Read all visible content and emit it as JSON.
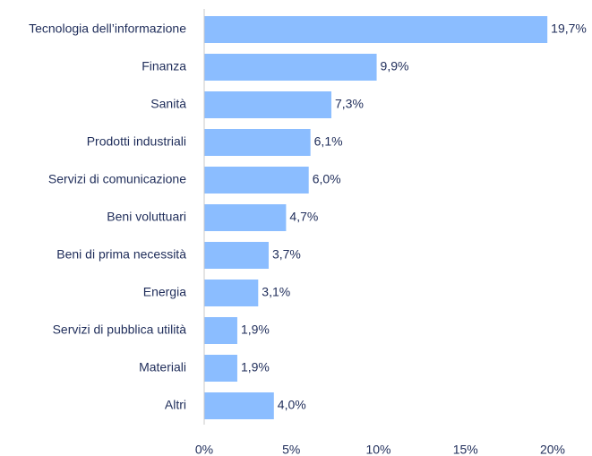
{
  "chart_data": {
    "type": "bar",
    "orientation": "horizontal",
    "categories": [
      "Tecnologia dell’informazione",
      "Finanza",
      "Sanità",
      "Prodotti industriali",
      "Servizi di comunicazione",
      "Beni voluttuari",
      "Beni di prima necessità",
      "Energia",
      "Servizi di pubblica utilità",
      "Materiali",
      "Altri"
    ],
    "values": [
      19.7,
      9.9,
      7.3,
      6.1,
      6.0,
      4.7,
      3.7,
      3.1,
      1.9,
      1.9,
      4.0
    ],
    "value_labels": [
      "19,7%",
      "9,9%",
      "7,3%",
      "6,1%",
      "6,0%",
      "4,7%",
      "3,7%",
      "3,1%",
      "1,9%",
      "1,9%",
      "4,0%"
    ],
    "color": "#8bbdff",
    "xlim": [
      0,
      20
    ],
    "xticks": [
      {
        "value": 0,
        "label": "0%"
      },
      {
        "value": 5,
        "label": "5%"
      },
      {
        "value": 10,
        "label": "10%"
      },
      {
        "value": 15,
        "label": "15%"
      },
      {
        "value": 20,
        "label": "20%"
      }
    ],
    "grid": false
  }
}
